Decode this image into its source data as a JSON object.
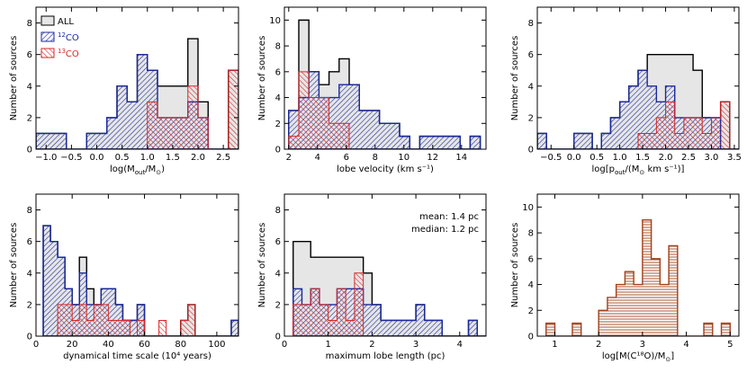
{
  "chart_data": [
    {
      "type": "bar",
      "subtype": "histogram",
      "xlabel": "log(M_out/M_⊙)",
      "ylabel": "Number of sources",
      "xlim": [
        -1.2,
        2.8
      ],
      "ylim": [
        0,
        9
      ],
      "xticks": [
        -1.0,
        -0.5,
        0.0,
        0.5,
        1.0,
        1.5,
        2.0,
        2.5
      ],
      "xtick_labels": [
        "−1.0",
        "−0.5",
        "0.0",
        "0.5",
        "1.0",
        "1.5",
        "2.0",
        "2.5"
      ],
      "yticks": [
        0,
        2,
        4,
        6,
        8
      ],
      "bin_edges": [
        -1.2,
        -1.0,
        -0.8,
        -0.6,
        -0.4,
        -0.2,
        0.0,
        0.2,
        0.4,
        0.6,
        0.8,
        1.0,
        1.2,
        1.4,
        1.6,
        1.8,
        2.0,
        2.2,
        2.4,
        2.6,
        2.8
      ],
      "legend": {
        "position": "top-left",
        "entries": [
          "ALL",
          "12CO",
          "13CO"
        ]
      },
      "series": [
        {
          "name": "ALL",
          "color": "#000000",
          "fill": "#e6e6e6",
          "pattern": "solid",
          "counts": [
            1,
            1,
            1,
            0,
            0,
            1,
            1,
            2,
            4,
            3,
            6,
            5,
            4,
            4,
            4,
            7,
            3,
            0,
            0,
            5
          ]
        },
        {
          "name": "12CO",
          "color": "#1a2a9c",
          "pattern": "hatch",
          "counts": [
            1,
            1,
            1,
            0,
            0,
            1,
            1,
            2,
            4,
            3,
            6,
            5,
            2,
            2,
            2,
            3,
            2,
            0,
            0,
            0
          ]
        },
        {
          "name": "13CO",
          "color": "#d62828",
          "pattern": "hatch",
          "counts": [
            0,
            0,
            0,
            0,
            0,
            0,
            0,
            0,
            0,
            0,
            0,
            3,
            2,
            2,
            2,
            4,
            2,
            0,
            0,
            5
          ]
        }
      ]
    },
    {
      "type": "bar",
      "subtype": "histogram",
      "xlabel": "lobe velocity (km s⁻¹)",
      "ylabel": "Number of sources",
      "xlim": [
        1.7,
        15.7
      ],
      "ylim": [
        0,
        11
      ],
      "xticks": [
        2,
        4,
        6,
        8,
        10,
        12,
        14
      ],
      "xtick_labels": [
        "2",
        "4",
        "6",
        "8",
        "10",
        "12",
        "14"
      ],
      "yticks": [
        0,
        2,
        4,
        6,
        8,
        10
      ],
      "bin_edges": [
        2.0,
        2.7,
        3.4,
        4.1,
        4.8,
        5.5,
        6.2,
        6.9,
        7.6,
        8.3,
        9.0,
        9.7,
        10.4,
        11.1,
        11.8,
        12.5,
        13.2,
        13.9,
        14.6,
        15.3
      ],
      "series": [
        {
          "name": "ALL",
          "color": "#000000",
          "fill": "#e6e6e6",
          "pattern": "solid",
          "counts": [
            3,
            10,
            6,
            5,
            6,
            7,
            5,
            3,
            3,
            2,
            2,
            1,
            0,
            1,
            1,
            1,
            1,
            0,
            1
          ]
        },
        {
          "name": "12CO",
          "color": "#1a2a9c",
          "pattern": "hatch",
          "counts": [
            3,
            4,
            6,
            4,
            4,
            5,
            5,
            3,
            3,
            2,
            2,
            1,
            0,
            1,
            1,
            1,
            1,
            0,
            1
          ]
        },
        {
          "name": "13CO",
          "color": "#d62828",
          "pattern": "hatch",
          "counts": [
            1,
            6,
            4,
            4,
            2,
            2,
            0,
            0,
            0,
            0,
            0,
            0,
            0,
            0,
            0,
            0,
            0,
            0,
            0
          ]
        }
      ]
    },
    {
      "type": "bar",
      "subtype": "histogram",
      "xlabel": "log[p_out/(M_⊙ km s⁻¹)]",
      "ylabel": "Number of sources",
      "xlim": [
        -0.8,
        3.6
      ],
      "ylim": [
        0,
        9
      ],
      "xticks": [
        -0.5,
        0.0,
        0.5,
        1.0,
        1.5,
        2.0,
        2.5,
        3.0,
        3.5
      ],
      "xtick_labels": [
        "−0.5",
        "0.0",
        "0.5",
        "1.0",
        "1.5",
        "2.0",
        "2.5",
        "3.0",
        "3.5"
      ],
      "yticks": [
        0,
        2,
        4,
        6,
        8
      ],
      "bin_edges": [
        -0.8,
        -0.6,
        -0.4,
        -0.2,
        0.0,
        0.2,
        0.4,
        0.6,
        0.8,
        1.0,
        1.2,
        1.4,
        1.6,
        1.8,
        2.0,
        2.2,
        2.4,
        2.6,
        2.8,
        3.0,
        3.2,
        3.4,
        3.6
      ],
      "series": [
        {
          "name": "ALL",
          "color": "#000000",
          "fill": "#e6e6e6",
          "pattern": "solid",
          "counts": [
            1,
            0,
            0,
            0,
            1,
            1,
            0,
            1,
            2,
            3,
            4,
            5,
            6,
            6,
            6,
            6,
            6,
            5,
            2,
            2,
            3,
            0
          ]
        },
        {
          "name": "12CO",
          "color": "#1a2a9c",
          "pattern": "hatch",
          "counts": [
            1,
            0,
            0,
            0,
            1,
            1,
            0,
            1,
            2,
            3,
            4,
            5,
            4,
            3,
            4,
            2,
            2,
            2,
            2,
            2,
            0,
            0
          ]
        },
        {
          "name": "13CO",
          "color": "#d62828",
          "pattern": "hatch",
          "counts": [
            0,
            0,
            0,
            0,
            0,
            0,
            0,
            0,
            0,
            0,
            0,
            1,
            1,
            2,
            3,
            1,
            2,
            2,
            1,
            2,
            3,
            0
          ]
        }
      ]
    },
    {
      "type": "bar",
      "subtype": "histogram",
      "xlabel": "dynamical time scale (10⁴ years)",
      "ylabel": "Number of sources",
      "xlim": [
        0,
        112
      ],
      "ylim": [
        0,
        9
      ],
      "xticks": [
        0,
        20,
        40,
        60,
        80,
        100
      ],
      "xtick_labels": [
        "0",
        "20",
        "40",
        "60",
        "80",
        "100"
      ],
      "yticks": [
        0,
        2,
        4,
        6,
        8
      ],
      "bin_edges": [
        4,
        8,
        12,
        16,
        20,
        24,
        28,
        32,
        36,
        40,
        44,
        48,
        52,
        56,
        60,
        64,
        68,
        72,
        76,
        80,
        84,
        88,
        92,
        96,
        100,
        104,
        108,
        112
      ],
      "series": [
        {
          "name": "ALL",
          "color": "#000000",
          "fill": "#e6e6e6",
          "pattern": "solid",
          "counts": [
            7,
            6,
            5,
            3,
            2,
            5,
            3,
            2,
            3,
            3,
            2,
            1,
            1,
            2,
            0,
            0,
            0,
            0,
            0,
            1,
            2,
            0,
            0,
            0,
            0,
            0,
            1
          ]
        },
        {
          "name": "12CO",
          "color": "#1a2a9c",
          "pattern": "hatch",
          "counts": [
            7,
            6,
            5,
            3,
            2,
            4,
            2,
            2,
            3,
            3,
            2,
            1,
            1,
            2,
            0,
            0,
            0,
            0,
            0,
            0,
            0,
            0,
            0,
            0,
            0,
            0,
            1
          ]
        },
        {
          "name": "13CO",
          "color": "#d62828",
          "pattern": "hatch",
          "counts": [
            0,
            0,
            2,
            2,
            1,
            2,
            1,
            2,
            2,
            1,
            1,
            1,
            0,
            1,
            0,
            0,
            1,
            0,
            0,
            1,
            2,
            0,
            0,
            0,
            0,
            0,
            0
          ]
        }
      ]
    },
    {
      "type": "bar",
      "subtype": "histogram",
      "xlabel": "maximum lobe length (pc)",
      "ylabel": "Number of sources",
      "xlim": [
        0,
        4.6
      ],
      "ylim": [
        0,
        9
      ],
      "xticks": [
        0,
        1,
        2,
        3,
        4
      ],
      "xtick_labels": [
        "0",
        "1",
        "2",
        "3",
        "4"
      ],
      "yticks": [
        0,
        2,
        4,
        6,
        8
      ],
      "annotations": [
        "mean:    1.4 pc",
        "median:  1.2 pc"
      ],
      "bin_edges": [
        0.2,
        0.4,
        0.6,
        0.8,
        1.0,
        1.2,
        1.4,
        1.6,
        1.8,
        2.0,
        2.2,
        2.4,
        2.6,
        2.8,
        3.0,
        3.2,
        3.4,
        3.6,
        3.8,
        4.0,
        4.2,
        4.4,
        4.6
      ],
      "series": [
        {
          "name": "ALL",
          "color": "#000000",
          "fill": "#e6e6e6",
          "pattern": "solid",
          "counts": [
            6,
            6,
            5,
            5,
            5,
            5,
            5,
            5,
            4,
            2,
            1,
            1,
            1,
            1,
            2,
            1,
            1,
            0,
            0,
            0,
            1,
            0
          ]
        },
        {
          "name": "12CO",
          "color": "#1a2a9c",
          "pattern": "hatch",
          "counts": [
            3,
            2,
            3,
            2,
            2,
            3,
            3,
            3,
            2,
            2,
            1,
            1,
            1,
            1,
            2,
            1,
            1,
            0,
            0,
            0,
            1,
            0
          ]
        },
        {
          "name": "13CO",
          "color": "#d62828",
          "pattern": "hatch",
          "counts": [
            2,
            2,
            3,
            2,
            1,
            3,
            1,
            4,
            0,
            0,
            0,
            0,
            0,
            0,
            0,
            0,
            0,
            0,
            0,
            0,
            0,
            0
          ]
        }
      ]
    },
    {
      "type": "bar",
      "subtype": "histogram",
      "xlabel": "log[M(C¹⁸O)/M_⊙]",
      "ylabel": "Number of sources",
      "xlim": [
        0.6,
        5.2
      ],
      "ylim": [
        0,
        11
      ],
      "xticks": [
        1,
        2,
        3,
        4,
        5
      ],
      "xtick_labels": [
        "1",
        "2",
        "3",
        "4",
        "5"
      ],
      "yticks": [
        0,
        2,
        4,
        6,
        8,
        10
      ],
      "bin_edges": [
        0.8,
        1.0,
        1.2,
        1.4,
        1.6,
        1.8,
        2.0,
        2.2,
        2.4,
        2.6,
        2.8,
        3.0,
        3.2,
        3.4,
        3.6,
        3.8,
        4.0,
        4.2,
        4.4,
        4.6,
        4.8,
        5.0
      ],
      "series": [
        {
          "name": "C18O",
          "color": "#a0401a",
          "pattern": "horizontal-lines",
          "counts": [
            1,
            0,
            0,
            1,
            0,
            0,
            2,
            3,
            4,
            5,
            4,
            9,
            6,
            4,
            7,
            0,
            0,
            0,
            1,
            0,
            1
          ]
        }
      ]
    }
  ]
}
